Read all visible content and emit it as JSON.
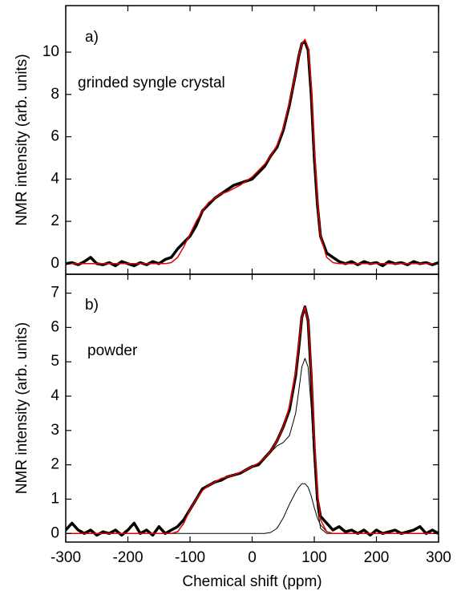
{
  "chart_data": [
    {
      "type": "line",
      "annotations": [
        "a)",
        "grinded syngle crystal"
      ],
      "ylabel": "NMR intensity (arb. units)",
      "xlim": [
        -300,
        300
      ],
      "ylim": [
        -0.5,
        12.2
      ],
      "yticks": [
        0,
        2,
        4,
        6,
        8,
        10
      ],
      "x": [
        -300,
        -290,
        -280,
        -270,
        -260,
        -250,
        -240,
        -230,
        -220,
        -210,
        -200,
        -190,
        -180,
        -170,
        -160,
        -150,
        -140,
        -130,
        -120,
        -110,
        -100,
        -90,
        -80,
        -70,
        -60,
        -50,
        -40,
        -30,
        -20,
        -10,
        0,
        10,
        20,
        30,
        40,
        50,
        60,
        70,
        75,
        80,
        85,
        90,
        95,
        100,
        105,
        110,
        120,
        130,
        140,
        150,
        160,
        170,
        180,
        190,
        200,
        210,
        220,
        230,
        240,
        250,
        260,
        270,
        280,
        290,
        300
      ],
      "series": [
        {
          "color": "#000000",
          "values": [
            0,
            0.05,
            -0.05,
            0.1,
            0.3,
            0,
            -0.05,
            0.05,
            -0.1,
            0.1,
            0,
            -0.1,
            0.05,
            -0.05,
            0.1,
            0,
            0.2,
            0.3,
            0.7,
            1.0,
            1.3,
            1.8,
            2.5,
            2.8,
            3.1,
            3.3,
            3.5,
            3.7,
            3.8,
            3.9,
            4.0,
            4.3,
            4.6,
            5.1,
            5.5,
            6.3,
            7.5,
            9.0,
            9.8,
            10.4,
            10.5,
            10.1,
            8.0,
            5.0,
            2.8,
            1.3,
            0.5,
            0.3,
            0.1,
            0,
            0.1,
            -0.05,
            0.1,
            0,
            0.05,
            -0.1,
            0.1,
            0,
            0.05,
            -0.05,
            0.1,
            0,
            0.05,
            -0.05,
            0.05
          ]
        },
        {
          "color": "#e00000",
          "values": [
            0,
            0,
            0,
            0,
            0,
            0,
            0,
            0,
            0,
            0,
            0,
            0,
            0,
            0,
            0,
            0,
            0,
            0.05,
            0.3,
            0.8,
            1.4,
            2.0,
            2.5,
            2.9,
            3.1,
            3.3,
            3.4,
            3.55,
            3.7,
            3.9,
            4.1,
            4.4,
            4.7,
            5.1,
            5.6,
            6.4,
            7.6,
            9.0,
            9.8,
            10.4,
            10.6,
            10.2,
            8.5,
            5.5,
            3.0,
            1.3,
            0.3,
            0.05,
            0,
            0,
            0,
            0,
            0,
            0,
            0,
            0,
            0,
            0,
            0,
            0,
            0,
            0,
            0,
            0,
            0
          ]
        }
      ]
    },
    {
      "type": "line",
      "annotations": [
        "b)",
        "powder"
      ],
      "ylabel": "NMR intensity (arb. units)",
      "xlabel": "Chemical shift (ppm)",
      "xlim": [
        -300,
        300
      ],
      "xticks": [
        -300,
        -200,
        -100,
        0,
        100,
        200,
        300
      ],
      "ylim": [
        -0.25,
        7.55
      ],
      "yticks": [
        0,
        1,
        2,
        3,
        4,
        5,
        6,
        7
      ],
      "x": [
        -300,
        -290,
        -280,
        -270,
        -260,
        -250,
        -240,
        -230,
        -220,
        -210,
        -200,
        -190,
        -180,
        -170,
        -160,
        -150,
        -140,
        -130,
        -120,
        -110,
        -100,
        -90,
        -80,
        -70,
        -60,
        -50,
        -40,
        -30,
        -20,
        -10,
        0,
        10,
        20,
        30,
        40,
        50,
        60,
        70,
        75,
        80,
        85,
        90,
        95,
        100,
        105,
        110,
        120,
        130,
        140,
        150,
        160,
        170,
        180,
        190,
        200,
        210,
        220,
        230,
        240,
        250,
        260,
        270,
        280,
        290,
        300
      ],
      "series": [
        {
          "color": "#000000",
          "values": [
            0.1,
            0.3,
            0.1,
            0,
            0.1,
            -0.05,
            0.05,
            0,
            0.1,
            -0.05,
            0.1,
            0.3,
            0,
            0.1,
            -0.05,
            0.2,
            0,
            0.1,
            0.2,
            0.4,
            0.7,
            1.0,
            1.3,
            1.4,
            1.5,
            1.55,
            1.65,
            1.7,
            1.75,
            1.85,
            1.95,
            2.0,
            2.2,
            2.4,
            2.7,
            3.1,
            3.6,
            4.6,
            5.4,
            6.3,
            6.6,
            6.2,
            4.6,
            2.5,
            1.0,
            0.5,
            0.3,
            0.1,
            0.2,
            0.05,
            0.1,
            0,
            0.1,
            -0.05,
            0.1,
            0,
            0.05,
            0.1,
            0,
            0.05,
            0.1,
            0.2,
            0,
            0.1,
            0
          ]
        },
        {
          "color": "#000000",
          "values": [
            0,
            0,
            0,
            0,
            0,
            0,
            0,
            0,
            0,
            0,
            0,
            0,
            0,
            0,
            0,
            0,
            0,
            0,
            0.05,
            0.3,
            0.7,
            1.0,
            1.25,
            1.4,
            1.5,
            1.6,
            1.65,
            1.7,
            1.78,
            1.85,
            1.95,
            2.05,
            2.2,
            2.37,
            2.55,
            2.65,
            2.85,
            3.5,
            4.15,
            4.85,
            5.1,
            4.85,
            3.7,
            2.05,
            0.75,
            0.15,
            0,
            0,
            0,
            0,
            0,
            0,
            0,
            0,
            0,
            0,
            0,
            0,
            0,
            0,
            0,
            0,
            0,
            0,
            0
          ]
        },
        {
          "color": "#000000",
          "values": [
            0,
            0,
            0,
            0,
            0,
            0,
            0,
            0,
            0,
            0,
            0,
            0,
            0,
            0,
            0,
            0,
            0,
            0,
            0,
            0,
            0,
            0,
            0,
            0,
            0,
            0,
            0,
            0,
            0,
            0,
            0,
            0,
            0,
            0.03,
            0.15,
            0.45,
            0.85,
            1.2,
            1.35,
            1.45,
            1.45,
            1.35,
            1.1,
            0.75,
            0.45,
            0.25,
            0.05,
            0,
            0,
            0,
            0,
            0,
            0,
            0,
            0,
            0,
            0,
            0,
            0,
            0,
            0,
            0,
            0,
            0,
            0
          ]
        },
        {
          "color": "#e00000",
          "values": [
            0,
            0,
            0,
            0,
            0,
            0,
            0,
            0,
            0,
            0,
            0,
            0,
            0,
            0,
            0,
            0,
            0,
            0,
            0.05,
            0.3,
            0.7,
            1.0,
            1.25,
            1.4,
            1.5,
            1.6,
            1.65,
            1.7,
            1.78,
            1.85,
            1.95,
            2.05,
            2.2,
            2.4,
            2.7,
            3.1,
            3.7,
            4.7,
            5.5,
            6.3,
            6.6,
            6.2,
            4.8,
            2.8,
            1.2,
            0.4,
            0.05,
            0,
            0,
            0,
            0,
            0,
            0,
            0,
            0,
            0,
            0,
            0,
            0,
            0,
            0,
            0,
            0,
            0,
            0
          ]
        }
      ]
    }
  ]
}
